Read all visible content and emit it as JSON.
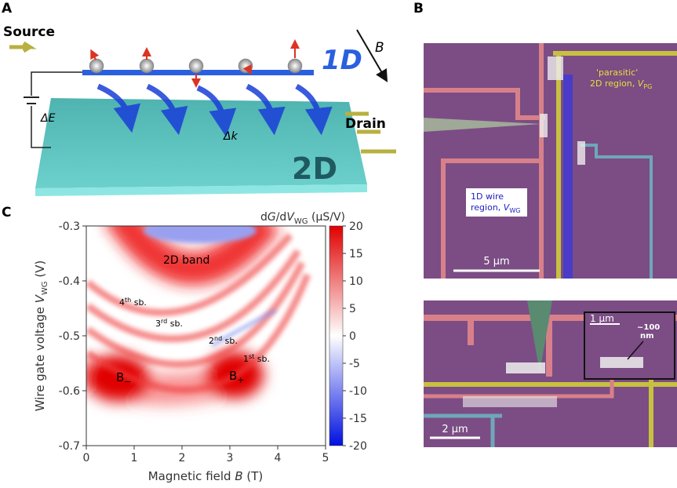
{
  "panel_a": {
    "label": "A",
    "source": "Source",
    "drain": "Drain",
    "one_d": "1D",
    "two_d": "2D",
    "field": "B",
    "delta_e": "ΔE",
    "delta_k": "Δk"
  },
  "panel_b": {
    "label": "B",
    "parasitic_line1": "'parasitic'",
    "parasitic_line2": "2D region, ",
    "parasitic_var": "V",
    "parasitic_sub": "PG",
    "wire_line1": "1D wire",
    "wire_line2": "region, ",
    "wire_var": "V",
    "wire_sub": "WG",
    "scale_top": "5 μm",
    "scale_bottom": "2 μm",
    "scale_inset": "1 μm",
    "inset_size": "~100",
    "inset_unit": "nm"
  },
  "panel_c": {
    "label": "C",
    "xlabel_text": "Magnetic field ",
    "xlabel_var": "B",
    "xlabel_unit": " (T)",
    "ylabel_text": "Wire gate voltage ",
    "ylabel_var": "V",
    "ylabel_sub": "WG",
    "ylabel_unit": " (V)",
    "cbar_d": "d",
    "cbar_g": "G",
    "cbar_slash": "/d",
    "cbar_v": "V",
    "cbar_sub": "WG",
    "cbar_unit": " (μS/V)",
    "xlim": [
      0,
      5
    ],
    "xticks": [
      0,
      1,
      2,
      3,
      4,
      5
    ],
    "ylim": [
      -0.7,
      -0.3
    ],
    "yticks": [
      -0.3,
      -0.4,
      -0.5,
      -0.6,
      -0.7
    ],
    "clim": [
      -20,
      20
    ],
    "cticks": [
      20,
      15,
      10,
      5,
      0,
      -5,
      -10,
      -15,
      -20
    ],
    "band_label": "2D band",
    "subbands": [
      {
        "n": "4",
        "sup": "th",
        "text": " sb."
      },
      {
        "n": "3",
        "sup": "rd",
        "text": " sb."
      },
      {
        "n": "2",
        "sup": "nd",
        "text": " sb."
      },
      {
        "n": "1",
        "sup": "st",
        "text": " sb."
      }
    ],
    "b_minus": {
      "text": "B",
      "sub": "−"
    },
    "b_plus": {
      "text": "B",
      "sub": "+"
    }
  }
}
